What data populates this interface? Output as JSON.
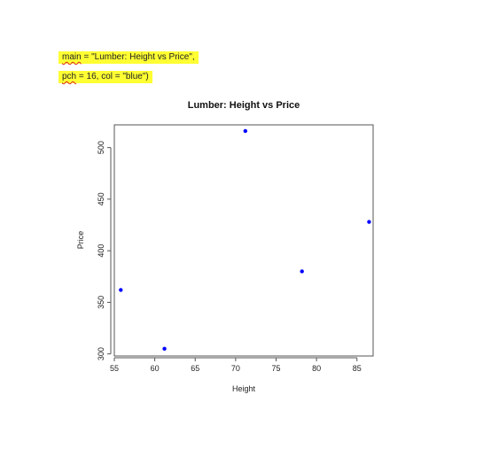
{
  "code": {
    "line1_kw": "main",
    "line1_rest": " = \"Lumber: Height vs Price\",",
    "line2_kw": "pch",
    "line2_rest": " = 16, col = \"blue\")"
  },
  "chart_data": {
    "type": "scatter",
    "title": "Lumber: Height vs Price",
    "xlabel": "Height",
    "ylabel": "Price",
    "xlim": [
      55,
      87
    ],
    "ylim": [
      298,
      522
    ],
    "xticks": [
      55,
      60,
      65,
      70,
      75,
      80,
      85
    ],
    "yticks": [
      300,
      350,
      400,
      450,
      500
    ],
    "point_color": "#0000ff",
    "grid": false,
    "x": [
      55.8,
      61.2,
      71.2,
      78.2,
      86.5
    ],
    "y": [
      362,
      305,
      516,
      380,
      428
    ]
  }
}
